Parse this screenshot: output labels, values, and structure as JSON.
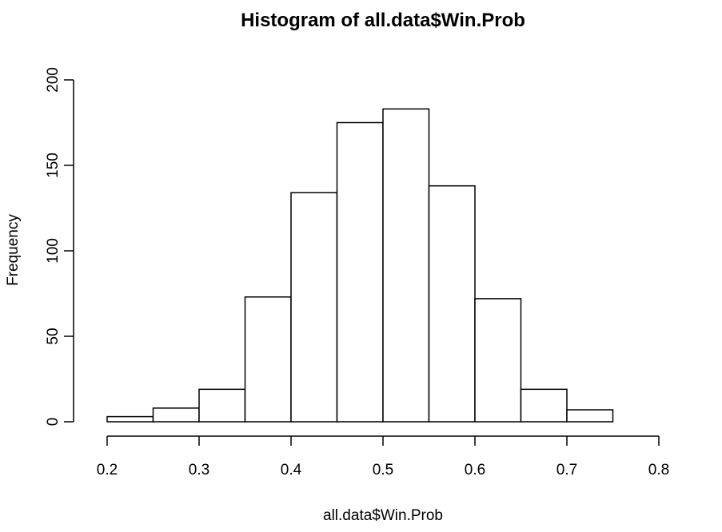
{
  "chart_data": {
    "type": "bar",
    "title": "Histogram of all.data$Win.Prob",
    "xlabel": "all.data$Win.Prob",
    "ylabel": "Frequency",
    "xlim": [
      0.2,
      0.8
    ],
    "ylim": [
      0,
      200
    ],
    "xticks": [
      "0.2",
      "0.3",
      "0.4",
      "0.5",
      "0.6",
      "0.7",
      "0.8"
    ],
    "yticks": [
      "0",
      "50",
      "100",
      "150",
      "200"
    ],
    "bins": [
      {
        "from": 0.2,
        "to": 0.25,
        "count": 3
      },
      {
        "from": 0.25,
        "to": 0.3,
        "count": 8
      },
      {
        "from": 0.3,
        "to": 0.35,
        "count": 19
      },
      {
        "from": 0.35,
        "to": 0.4,
        "count": 73
      },
      {
        "from": 0.4,
        "to": 0.45,
        "count": 134
      },
      {
        "from": 0.45,
        "to": 0.5,
        "count": 175
      },
      {
        "from": 0.5,
        "to": 0.55,
        "count": 183
      },
      {
        "from": 0.55,
        "to": 0.6,
        "count": 138
      },
      {
        "from": 0.6,
        "to": 0.65,
        "count": 72
      },
      {
        "from": 0.65,
        "to": 0.7,
        "count": 19
      },
      {
        "from": 0.7,
        "to": 0.75,
        "count": 7
      }
    ],
    "grid": false,
    "legend": "none"
  }
}
